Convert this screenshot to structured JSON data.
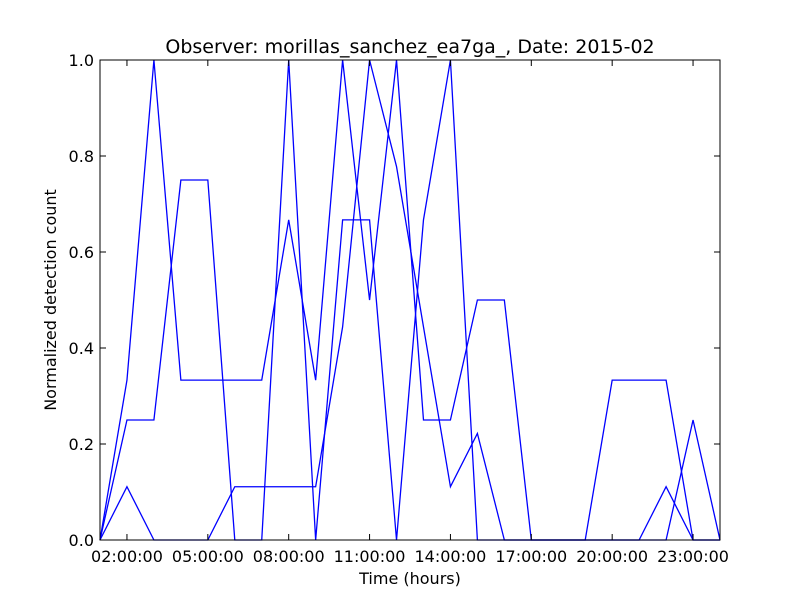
{
  "chart_data": {
    "type": "line",
    "title": "Observer: morillas_sanchez_ea7ga_, Date: 2015-02",
    "xlabel": "Time (hours)",
    "ylabel": "Normalized detection count",
    "xlim": [
      1,
      24
    ],
    "ylim": [
      0,
      1
    ],
    "x_ticks": [
      {
        "value": 2,
        "label": "02:00:00"
      },
      {
        "value": 5,
        "label": "05:00:00"
      },
      {
        "value": 8,
        "label": "08:00:00"
      },
      {
        "value": 11,
        "label": "11:00:00"
      },
      {
        "value": 14,
        "label": "14:00:00"
      },
      {
        "value": 17,
        "label": "17:00:00"
      },
      {
        "value": 20,
        "label": "20:00:00"
      },
      {
        "value": 23,
        "label": "23:00:00"
      }
    ],
    "y_ticks": [
      {
        "value": 0,
        "label": "0.0"
      },
      {
        "value": 0.2,
        "label": "0.2"
      },
      {
        "value": 0.4,
        "label": "0.4"
      },
      {
        "value": 0.6,
        "label": "0.6"
      },
      {
        "value": 0.8,
        "label": "0.8"
      },
      {
        "value": 1.0,
        "label": "1.0"
      }
    ],
    "line_color": "#0000ff",
    "grid": false,
    "legend": "none",
    "x": [
      1,
      2,
      3,
      4,
      5,
      6,
      7,
      8,
      9,
      10,
      11,
      12,
      13,
      14,
      15,
      16,
      17,
      18,
      19,
      20,
      21,
      22,
      23,
      24
    ],
    "series": [
      {
        "values": [
          0,
          0.333,
          1.0,
          0.333,
          0.333,
          0.333,
          0.333,
          0.667,
          0.333,
          1.0,
          0.5,
          1.0,
          0.25,
          0.25,
          0.5,
          0.5,
          0,
          0,
          0,
          0.333,
          0.333,
          0.333,
          0,
          0
        ]
      },
      {
        "values": [
          0,
          0.25,
          0.25,
          0.75,
          0.75,
          0,
          0,
          1.0,
          0,
          0.667,
          0.667,
          0,
          0.667,
          1.0,
          0,
          0,
          0,
          0,
          0,
          0,
          0,
          0,
          0.25,
          0
        ]
      },
      {
        "values": [
          0,
          0.111,
          0,
          0,
          0,
          0.111,
          0.111,
          0.111,
          0.111,
          0.444,
          1.0,
          0.778,
          0.444,
          0.111,
          0.222,
          0,
          0,
          0,
          0,
          0,
          0,
          0.111,
          0,
          0
        ]
      }
    ]
  }
}
